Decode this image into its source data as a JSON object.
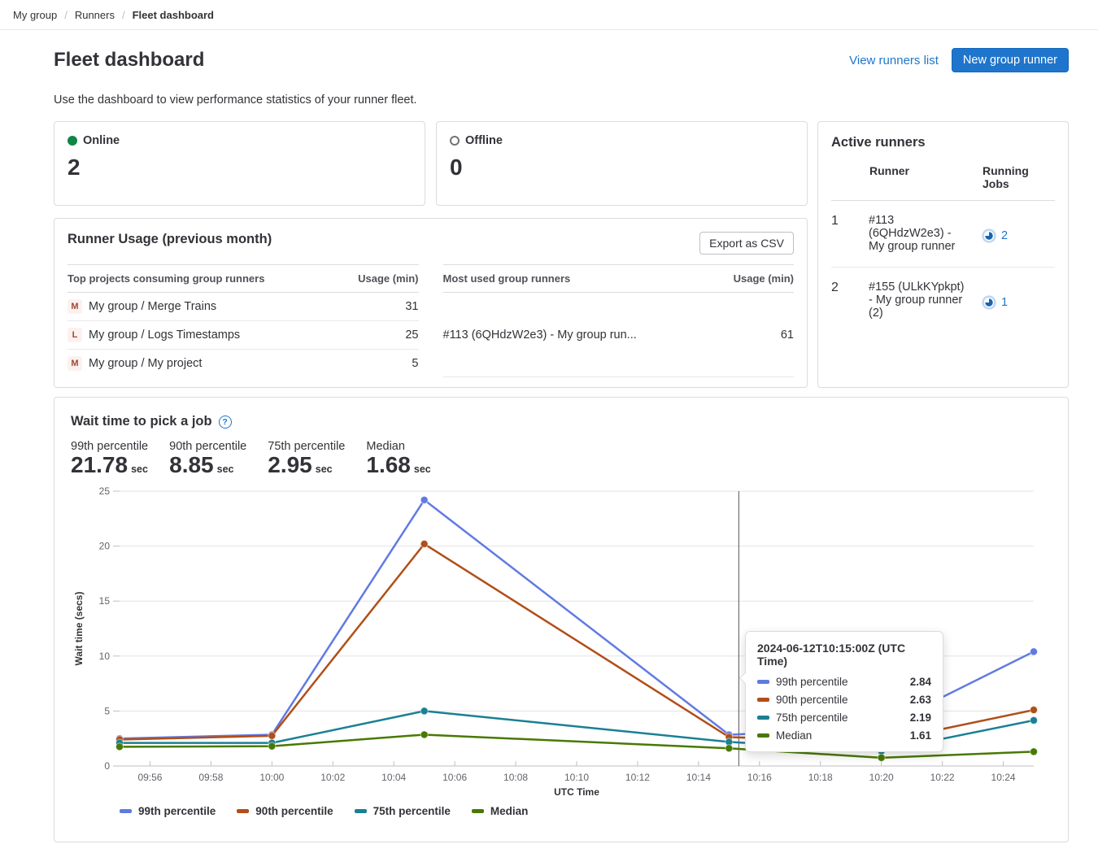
{
  "breadcrumb": {
    "items": [
      "My group",
      "Runners",
      "Fleet dashboard"
    ]
  },
  "header": {
    "title": "Fleet dashboard",
    "view_runners_list": "View runners list",
    "new_group_runner": "New group runner",
    "description": "Use the dashboard to view performance statistics of your runner fleet."
  },
  "status_cards": {
    "online": {
      "label": "Online",
      "count": "2"
    },
    "offline": {
      "label": "Offline",
      "count": "0"
    }
  },
  "runner_usage": {
    "title": "Runner Usage (previous month)",
    "export_button": "Export as CSV",
    "projects_table": {
      "col_name": "Top projects consuming group runners",
      "col_usage": "Usage (min)",
      "rows": [
        {
          "initial": "M",
          "name": "My group / Merge Trains",
          "usage": "31"
        },
        {
          "initial": "L",
          "name": "My group / Logs Timestamps",
          "usage": "25"
        },
        {
          "initial": "M",
          "name": "My group / My project",
          "usage": "5"
        }
      ]
    },
    "runners_table": {
      "col_name": "Most used group runners",
      "col_usage": "Usage (min)",
      "rows": [
        {
          "name": "#113 (6QHdzW2e3) - My group run...",
          "usage": "61"
        }
      ]
    }
  },
  "active_runners": {
    "title": "Active runners",
    "columns": {
      "runner": "Runner",
      "jobs": "Running Jobs"
    },
    "rows": [
      {
        "index": "1",
        "runner": "#113 (6QHdzW2e3) - My group runner",
        "jobs": "2"
      },
      {
        "index": "2",
        "runner": "#155 (ULkKYpkpt) - My group runner (2)",
        "jobs": "1"
      }
    ]
  },
  "wait_time": {
    "title": "Wait time to pick a job",
    "stats": [
      {
        "label": "99th percentile",
        "value": "21.78",
        "unit": "sec"
      },
      {
        "label": "90th percentile",
        "value": "8.85",
        "unit": "sec"
      },
      {
        "label": "75th percentile",
        "value": "2.95",
        "unit": "sec"
      },
      {
        "label": "Median",
        "value": "1.68",
        "unit": "sec"
      }
    ]
  },
  "chart_data": {
    "type": "line",
    "title": "Wait time to pick a job",
    "xlabel": "UTC Time",
    "ylabel": "Wait time (secs)",
    "x": [
      "09:55",
      "10:00",
      "10:05",
      "10:15",
      "10:20",
      "10:25"
    ],
    "series": [
      {
        "name": "99th percentile",
        "color": "#617ae2",
        "values": [
          2.5,
          2.85,
          24.2,
          2.84,
          3.5,
          10.4
        ]
      },
      {
        "name": "90th percentile",
        "color": "#b14f18",
        "values": [
          2.4,
          2.75,
          20.2,
          2.63,
          2.2,
          5.1
        ]
      },
      {
        "name": "75th percentile",
        "color": "#1a8093",
        "values": [
          2.1,
          2.1,
          5.0,
          2.19,
          1.35,
          4.15
        ]
      },
      {
        "name": "Median",
        "color": "#487900",
        "values": [
          1.75,
          1.8,
          2.85,
          1.61,
          0.75,
          1.3
        ]
      }
    ],
    "ylim": [
      0,
      25
    ],
    "yticks": [
      0,
      5,
      10,
      15,
      20,
      25
    ],
    "xticks": [
      "09:56",
      "09:58",
      "10:00",
      "10:02",
      "10:04",
      "10:06",
      "10:08",
      "10:10",
      "10:12",
      "10:14",
      "10:16",
      "10:18",
      "10:20",
      "10:22",
      "10:24"
    ],
    "x_range": [
      "09:55",
      "10:25"
    ],
    "grid": true,
    "legend_position": "bottom",
    "crosshair_x": "10:15",
    "tooltip": {
      "title": "2024-06-12T10:15:00Z (UTC Time)",
      "rows": [
        {
          "label": "99th percentile",
          "value": "2.84"
        },
        {
          "label": "90th percentile",
          "value": "2.63"
        },
        {
          "label": "75th percentile",
          "value": "2.19"
        },
        {
          "label": "Median",
          "value": "1.61"
        }
      ]
    }
  },
  "icons": {
    "online": "filled-green-circle",
    "offline": "hollow-gray-circle",
    "running_jobs": "running-status-pie",
    "help": "question-mark-in-circle"
  },
  "colors": {
    "accent": "#1f75cb",
    "online_green": "#108548"
  }
}
